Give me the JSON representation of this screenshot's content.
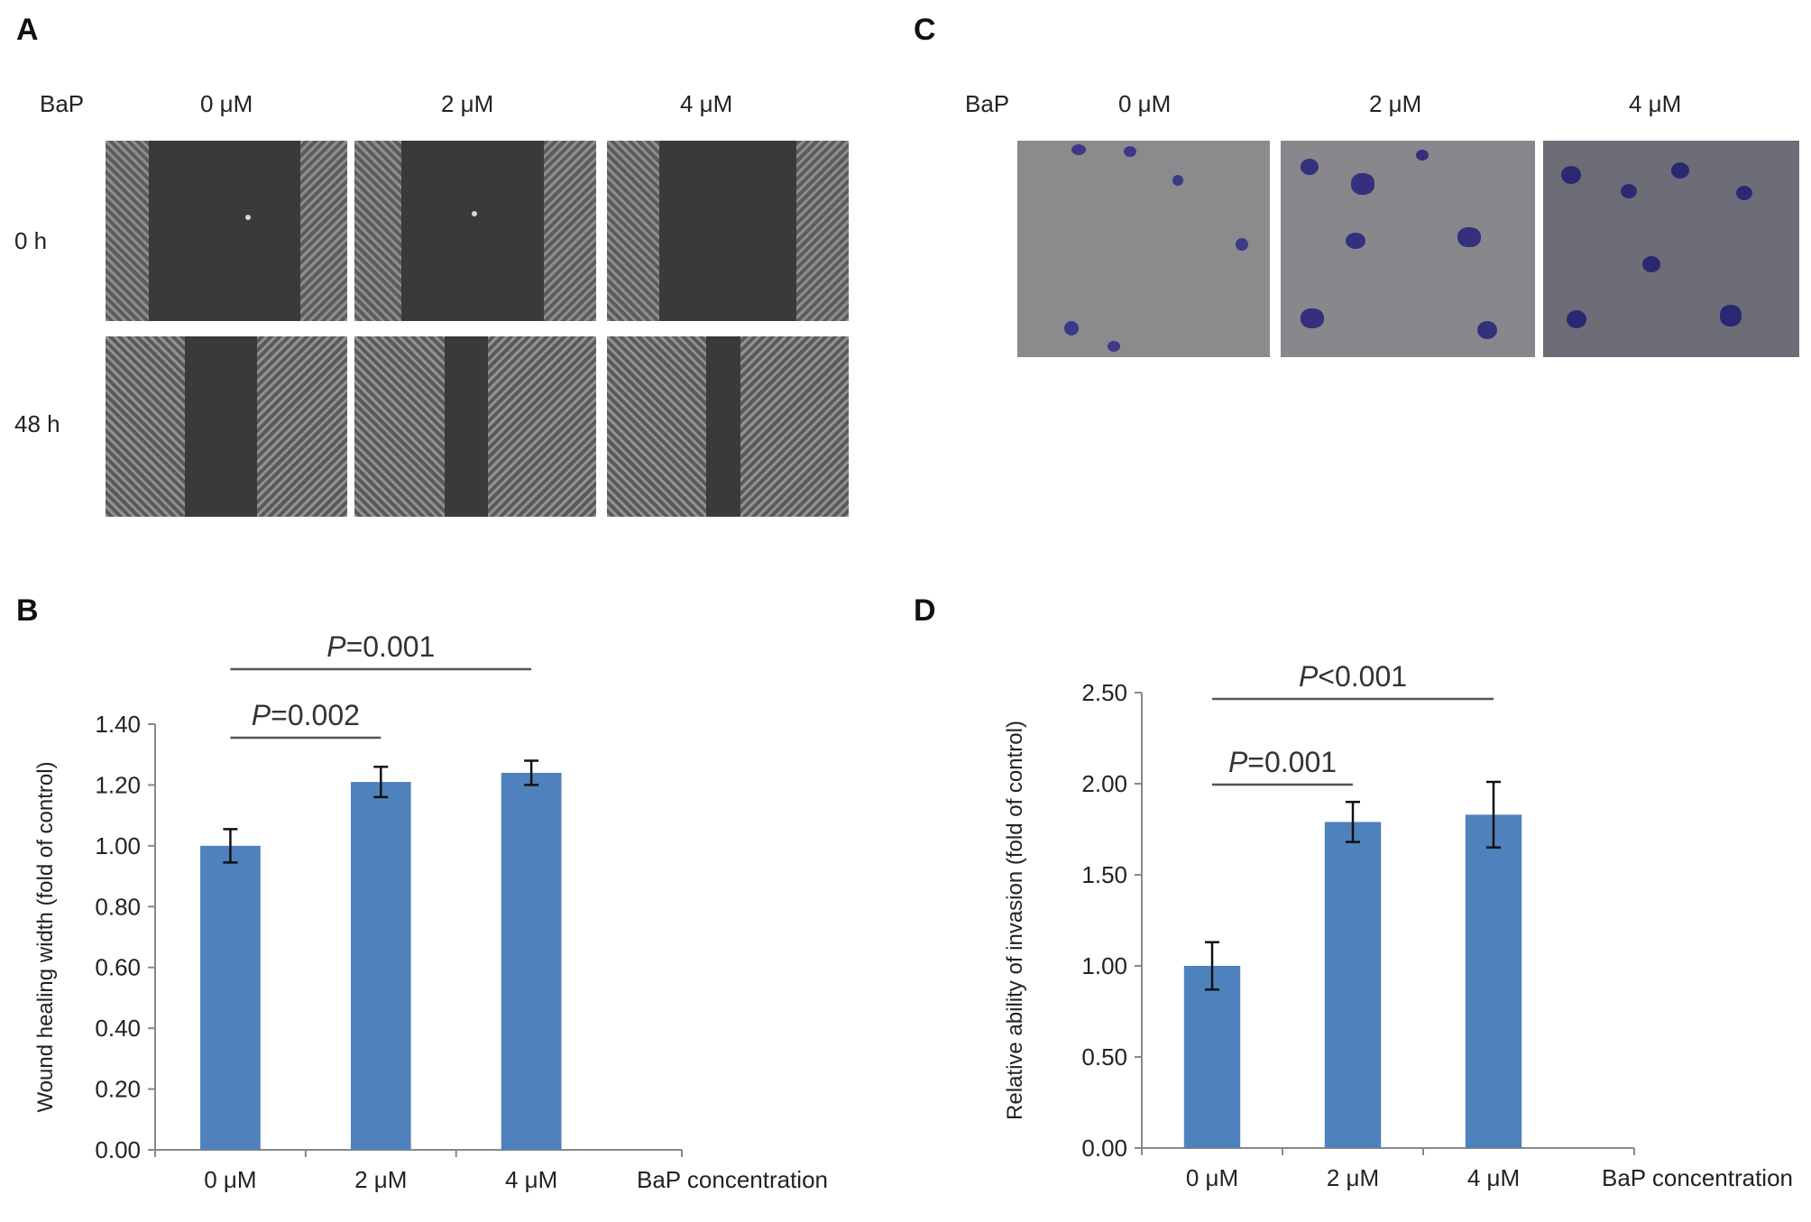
{
  "panels": {
    "A": {
      "letter": "A",
      "bap_label": "BaP",
      "columns": [
        "0 μM",
        "2 μM",
        "4 μM"
      ],
      "rows": [
        "0 h",
        "48 h"
      ]
    },
    "B": {
      "letter": "B"
    },
    "C": {
      "letter": "C",
      "bap_label": "BaP",
      "columns": [
        "0 μM",
        "2 μM",
        "4 μM"
      ]
    },
    "D": {
      "letter": "D"
    }
  },
  "chart_data": [
    {
      "panel": "B",
      "type": "bar",
      "categories": [
        "0 μM",
        "2 μM",
        "4 μM"
      ],
      "values": [
        1.0,
        1.21,
        1.24
      ],
      "errors": [
        0.055,
        0.05,
        0.04
      ],
      "ylabel": "Wound healing width (fold of control)",
      "xlabel": "BaP concentration",
      "ylim": [
        0,
        1.4
      ],
      "yticks": [
        "0.00",
        "0.20",
        "0.40",
        "0.60",
        "0.80",
        "1.00",
        "1.20",
        "1.40"
      ],
      "grid": false,
      "bar_color": "#4f81bd",
      "comparisons": [
        {
          "from": 0,
          "to": 1,
          "label_italic": "P",
          "label_rest": "=0.002"
        },
        {
          "from": 0,
          "to": 2,
          "label_italic": "P",
          "label_rest": "=0.001"
        }
      ]
    },
    {
      "panel": "D",
      "type": "bar",
      "categories": [
        "0 μM",
        "2 μM",
        "4 μM"
      ],
      "values": [
        1.0,
        1.79,
        1.83
      ],
      "errors": [
        0.13,
        0.11,
        0.18
      ],
      "ylabel": "Relative ability of invasion (fold of control)",
      "xlabel": "BaP concentration",
      "ylim": [
        0,
        2.5
      ],
      "yticks": [
        "0.00",
        "0.50",
        "1.00",
        "1.50",
        "2.00",
        "2.50"
      ],
      "grid": false,
      "bar_color": "#4f81bd",
      "comparisons": [
        {
          "from": 0,
          "to": 1,
          "label_italic": "P",
          "label_rest": "=0.001"
        },
        {
          "from": 0,
          "to": 2,
          "label_italic": "P",
          "label_rest": "<0.001"
        }
      ]
    }
  ]
}
